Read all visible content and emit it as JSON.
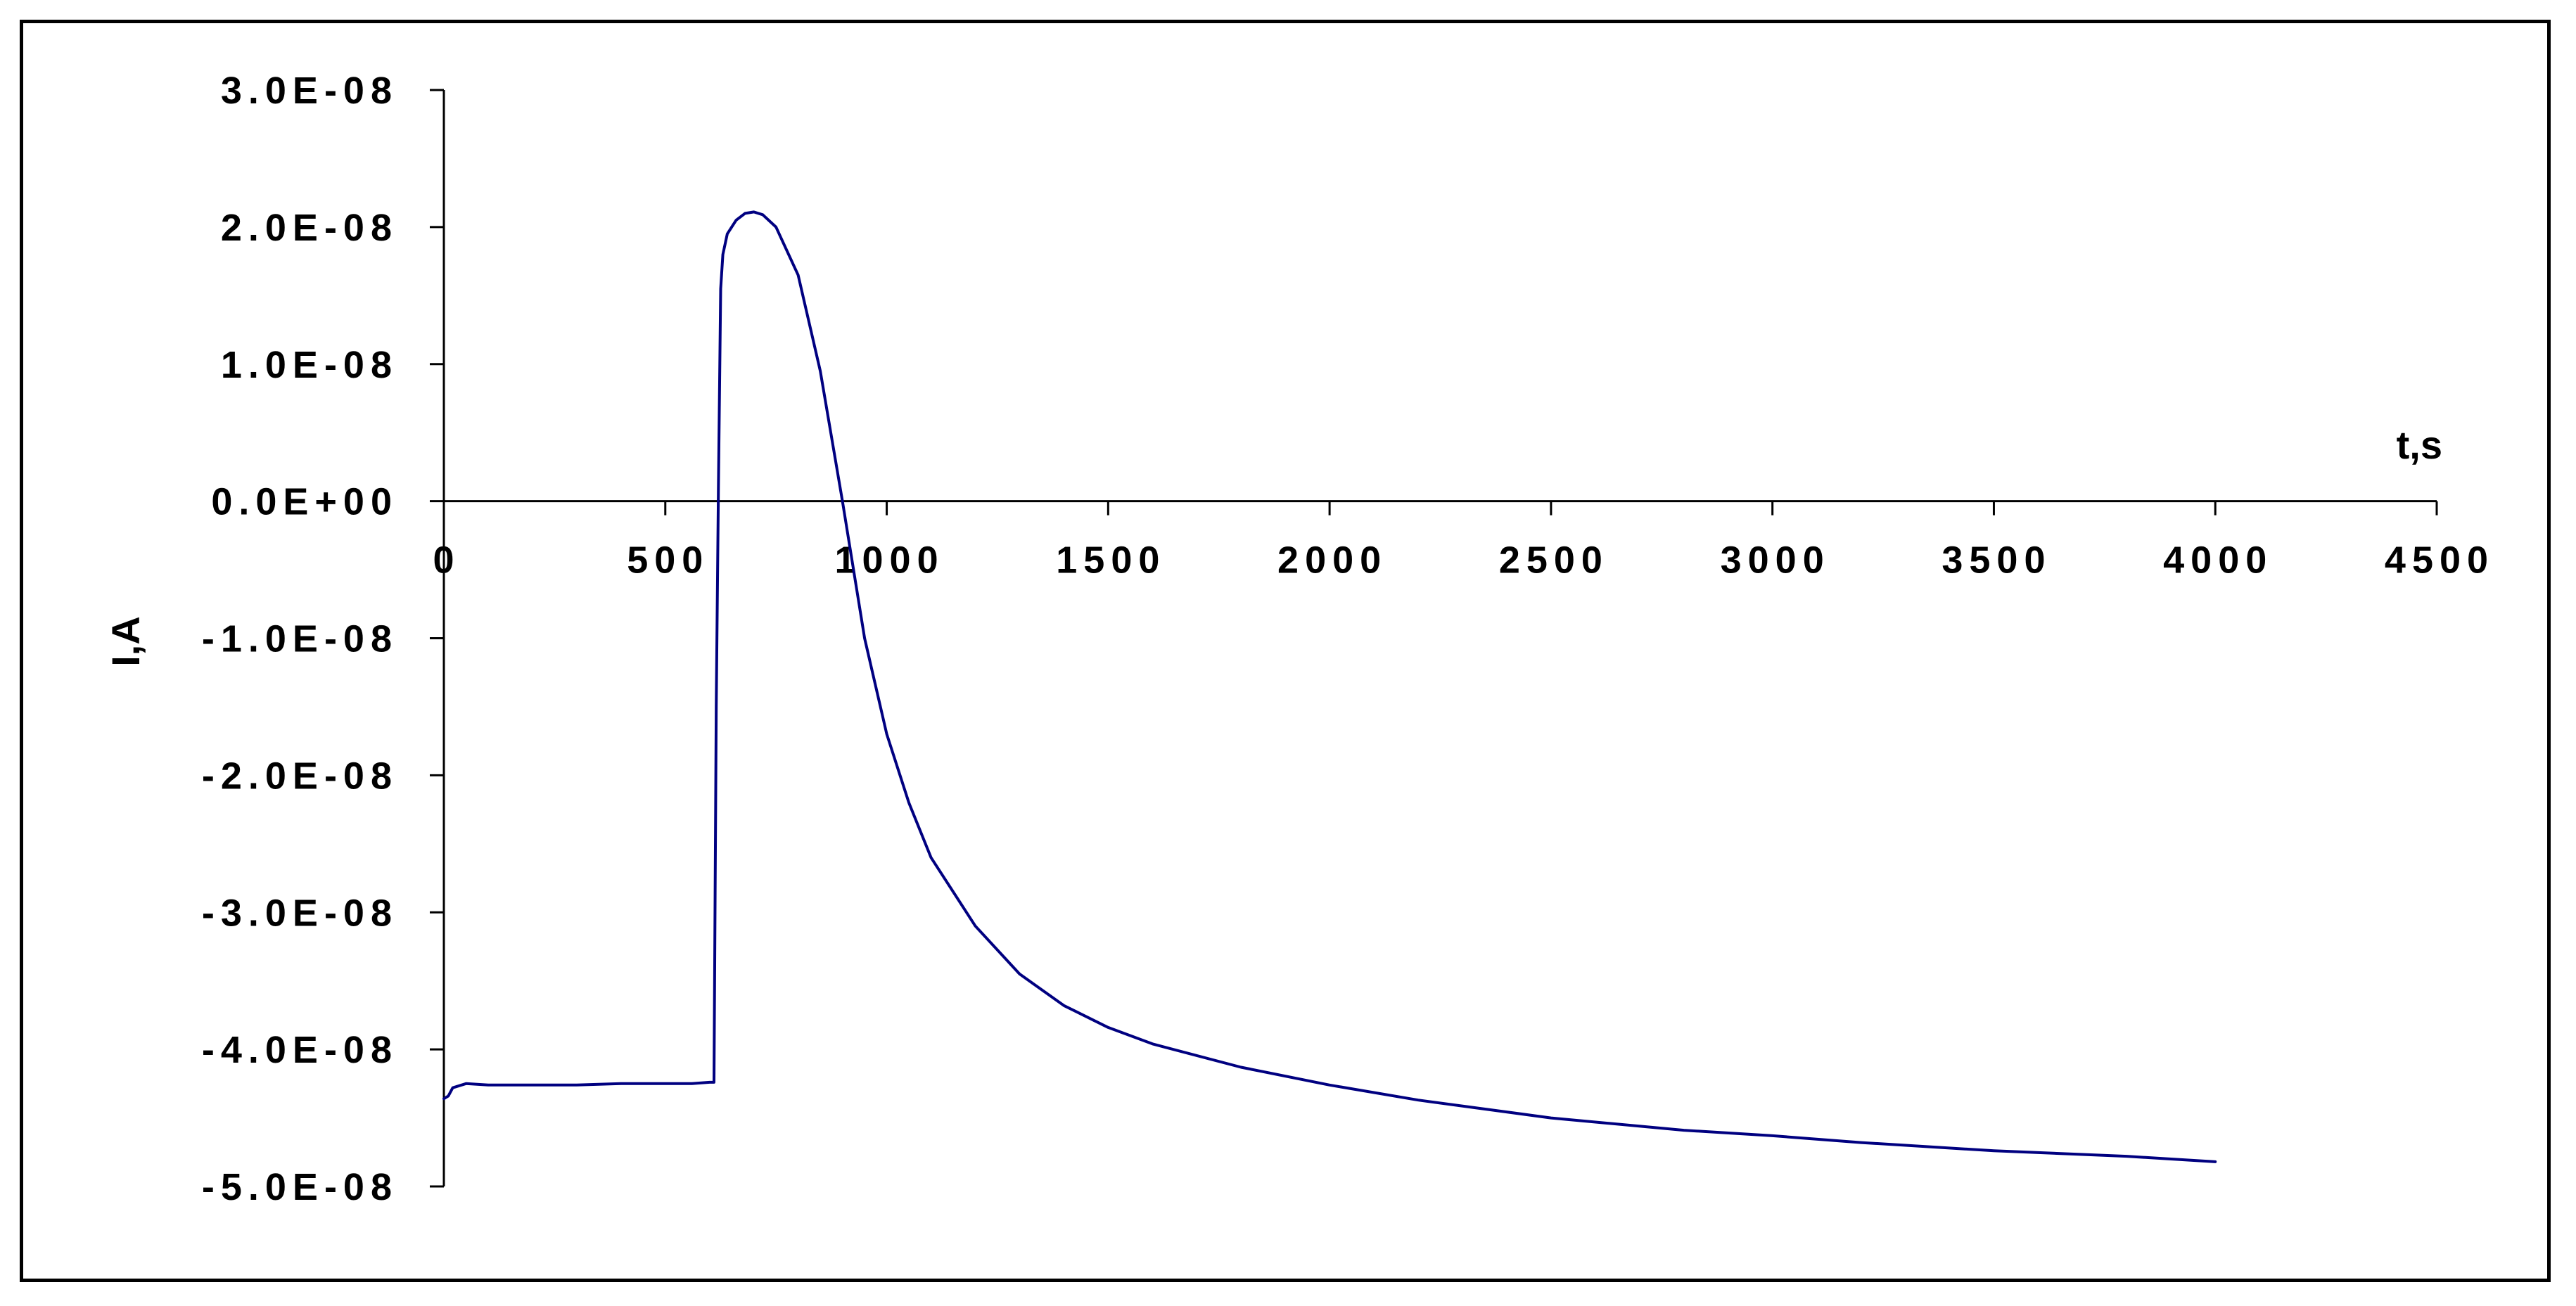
{
  "chart_data": {
    "type": "line",
    "title": "",
    "xlabel": "t,s",
    "ylabel": "I,A",
    "xlim": [
      0,
      4500
    ],
    "ylim": [
      -5e-08,
      3e-08
    ],
    "x_ticks": [
      0,
      500,
      1000,
      1500,
      2000,
      2500,
      3000,
      3500,
      4000,
      4500
    ],
    "x_tick_labels": [
      "0",
      "500",
      "1000",
      "1500",
      "2000",
      "2500",
      "3000",
      "3500",
      "4000",
      "4500"
    ],
    "y_ticks": [
      3e-08,
      2e-08,
      1e-08,
      0,
      -1e-08,
      -2e-08,
      -3e-08,
      -4e-08,
      -5e-08
    ],
    "y_tick_labels": [
      "3.0E-08",
      "2.0E-08",
      "1.0E-08",
      "0.0E+00",
      "-1.0E-08",
      "-2.0E-08",
      "-3.0E-08",
      "-4.0E-08",
      "-5.0E-08"
    ],
    "grid": false,
    "legend": "none",
    "line_color": "#000080",
    "series": [
      {
        "x": [
          0,
          10,
          20,
          50,
          100,
          200,
          300,
          400,
          500,
          560,
          600,
          610,
          615,
          620,
          625,
          630,
          640,
          660,
          680,
          700,
          720,
          750,
          800,
          850,
          900,
          950,
          1000,
          1050,
          1100,
          1200,
          1300,
          1400,
          1500,
          1600,
          1800,
          2000,
          2200,
          2500,
          2800,
          3000,
          3200,
          3500,
          3800,
          4000
        ],
        "y": [
          -4.36e-08,
          -4.34e-08,
          -4.28e-08,
          -4.25e-08,
          -4.26e-08,
          -4.26e-08,
          -4.26e-08,
          -4.25e-08,
          -4.25e-08,
          -4.25e-08,
          -4.24e-08,
          -4.24e-08,
          -1.5e-08,
          1e-09,
          1.55e-08,
          1.8e-08,
          1.95e-08,
          2.05e-08,
          2.1e-08,
          2.11e-08,
          2.09e-08,
          2e-08,
          1.65e-08,
          9.5e-09,
          0.0,
          -1e-08,
          -1.7e-08,
          -2.2e-08,
          -2.6e-08,
          -3.1e-08,
          -3.45e-08,
          -3.68e-08,
          -3.84e-08,
          -3.96e-08,
          -4.13e-08,
          -4.26e-08,
          -4.37e-08,
          -4.5e-08,
          -4.59e-08,
          -4.63e-08,
          -4.68e-08,
          -4.74e-08,
          -4.78e-08,
          -4.82e-08
        ]
      }
    ]
  }
}
